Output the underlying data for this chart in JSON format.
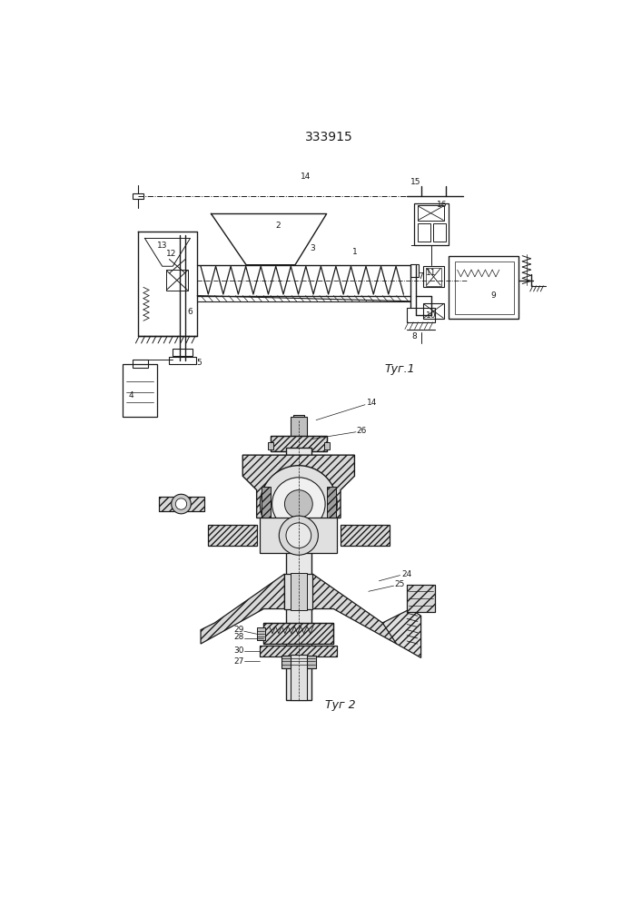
{
  "patent_number": "333915",
  "fig1_label": "Τуг.1",
  "fig2_label": "Τуг 2",
  "bg_color": "#ffffff",
  "line_color": "#1a1a1a",
  "line_width": 0.8
}
